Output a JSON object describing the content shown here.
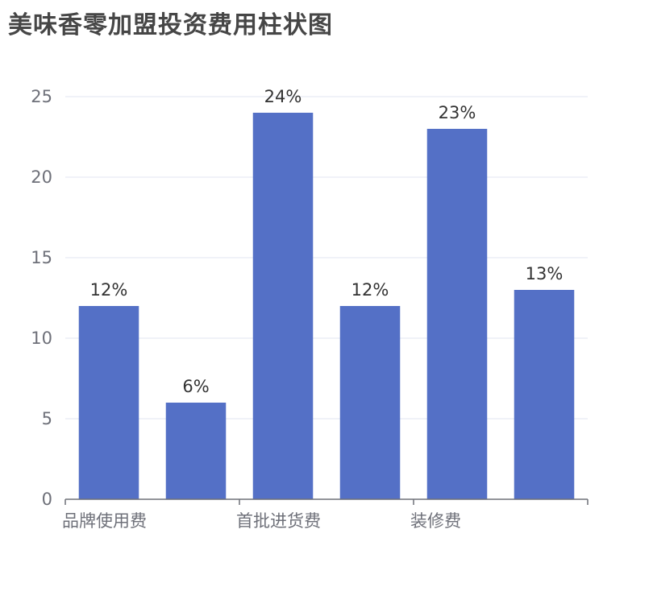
{
  "chart_data": {
    "type": "bar",
    "title": "美味香零加盟投资费用柱状图",
    "categories": [
      "品牌使用费",
      "",
      "首批进货费",
      "",
      "装修费",
      ""
    ],
    "values": [
      12,
      6,
      24,
      12,
      23,
      13
    ],
    "data_labels": [
      "12%",
      "6%",
      "24%",
      "12%",
      "23%",
      "13%"
    ],
    "ylim": [
      0,
      25
    ],
    "yticks": [
      0,
      5,
      10,
      15,
      20,
      25
    ],
    "xlabel": "",
    "ylabel": "",
    "grid": true,
    "bar_color": "#5470c6",
    "grid_color": "#e0e6f1",
    "axis_color": "#6e7079"
  }
}
